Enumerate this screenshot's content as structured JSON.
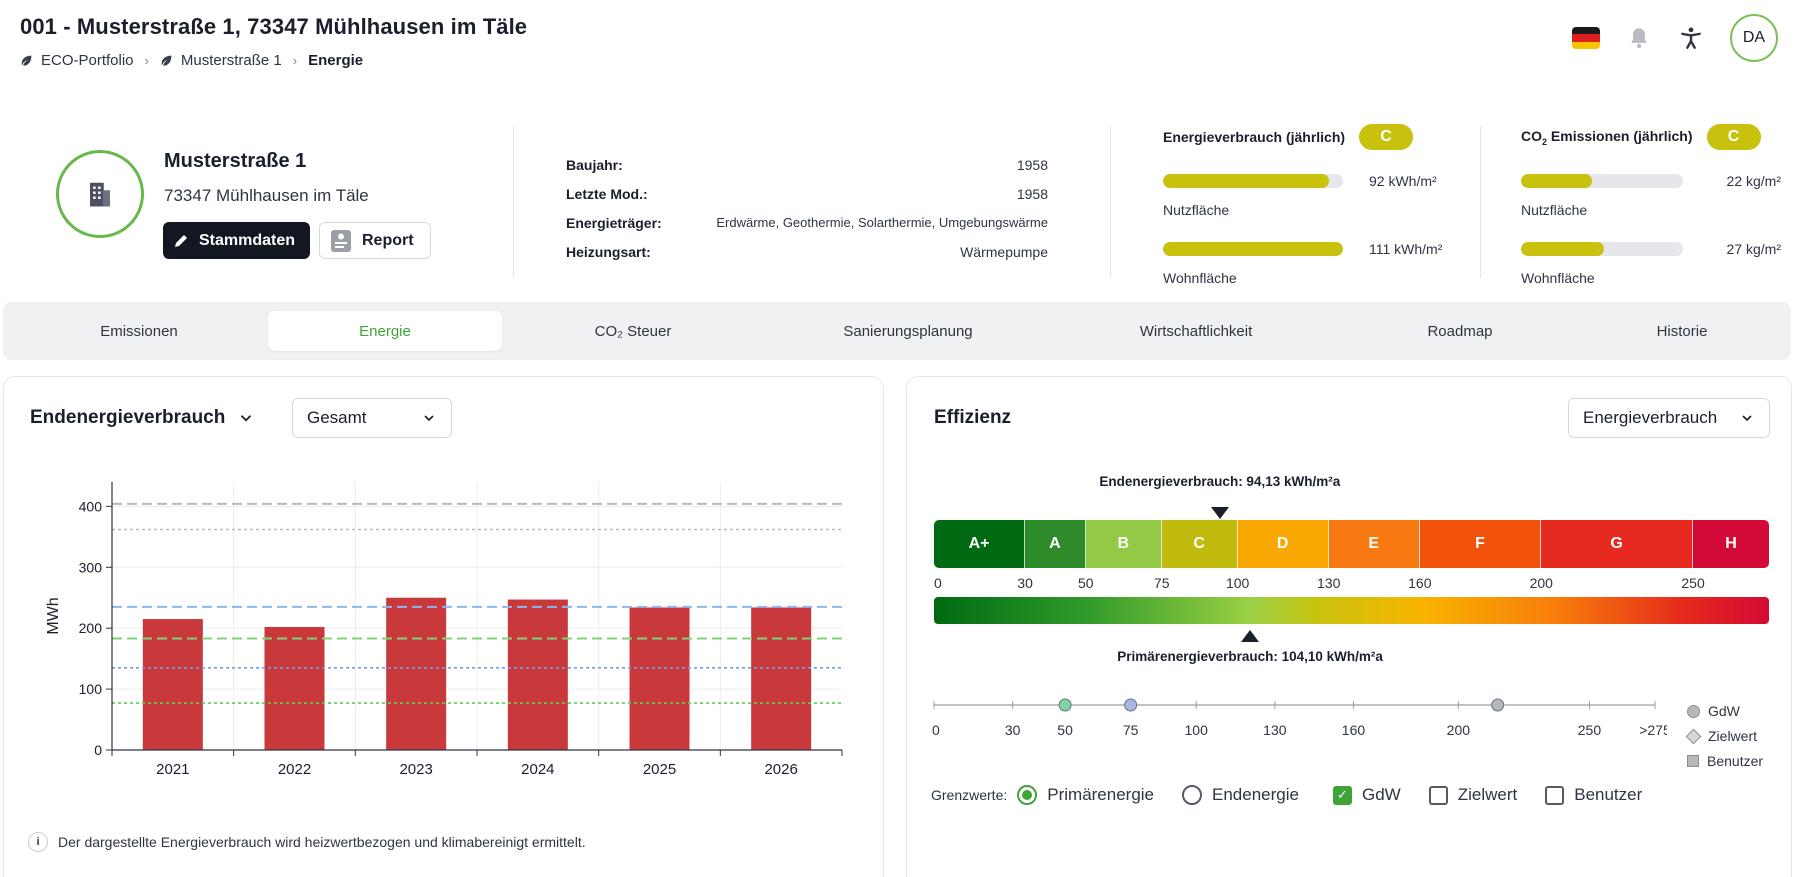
{
  "header": {
    "title": "001 - Musterstraße 1, 73347 Mühlhausen im Täle",
    "breadcrumb": [
      "ECO-Portfolio",
      "Musterstraße 1",
      "Energie"
    ],
    "avatar": "DA",
    "icons": [
      "germany-flag-icon",
      "bell-icon",
      "accessibility-icon"
    ]
  },
  "property": {
    "name": "Musterstraße 1",
    "city": "73347 Mühlhausen im Täle",
    "btn_stammdaten": "Stammdaten",
    "btn_report": "Report"
  },
  "specs": [
    {
      "label": "Baujahr:",
      "value": "1958"
    },
    {
      "label": "Letzte Mod.:",
      "value": "1958"
    },
    {
      "label": "Energieträger:",
      "value": "Erdwärme, Geothermie, Solarthermie, Umgebungswärme"
    },
    {
      "label": "Heizungsart:",
      "value": "Wärmepumpe"
    }
  ],
  "energy_metric": {
    "title": "Energieverbrauch (jährlich)",
    "badge": "C",
    "rows": [
      {
        "value": "92 kWh/m²",
        "label": "Nutzfläche",
        "fraction": 0.92
      },
      {
        "value": "111 kWh/m²",
        "label": "Wohnfläche",
        "fraction": 1.0
      }
    ]
  },
  "co2_metric": {
    "title_pre": "CO",
    "title_sub": "2",
    "title_post": " Emissionen (jährlich)",
    "badge": "C",
    "rows": [
      {
        "value": "22 kg/m²",
        "label": "Nutzfläche",
        "fraction": 0.44
      },
      {
        "value": "27 kg/m²",
        "label": "Wohnfläche",
        "fraction": 0.51
      }
    ]
  },
  "tabs": [
    {
      "label": "Emissionen",
      "active": false
    },
    {
      "label": "Energie",
      "active": true
    },
    {
      "label": "CO₂ Steuer",
      "active": false
    },
    {
      "label": "Sanierungsplanung",
      "active": false
    },
    {
      "label": "Wirtschaftlichkeit",
      "active": false
    },
    {
      "label": "Roadmap",
      "active": false
    },
    {
      "label": "Historie",
      "active": false
    }
  ],
  "left_card": {
    "title": "Endenergieverbrauch",
    "select": "Gesamt",
    "note": "Der dargestellte Energieverbrauch wird heizwertbezogen und klimabereinigt ermittelt."
  },
  "chart_data": {
    "type": "bar",
    "categories": [
      "2021",
      "2022",
      "2023",
      "2024",
      "2025",
      "2026"
    ],
    "values": [
      215,
      202,
      250,
      247,
      234,
      234
    ],
    "ylabel": "MWh",
    "ylim": [
      0,
      440
    ],
    "yticks": [
      0,
      100,
      200,
      300,
      400
    ],
    "bar_color": "#c9383a",
    "reference_lines": [
      {
        "value": 404,
        "style": "dashed",
        "color": "#b7b9bd"
      },
      {
        "value": 362,
        "style": "dotted",
        "color": "#b7b9bd"
      },
      {
        "value": 235,
        "style": "dashed",
        "color": "#8fb7ec"
      },
      {
        "value": 183,
        "style": "dashed",
        "color": "#7fd37a"
      },
      {
        "value": 135,
        "style": "dotted",
        "color": "#6f9ef0"
      },
      {
        "value": 77,
        "style": "dotted",
        "color": "#5fce5a"
      }
    ],
    "grid": true
  },
  "right_card": {
    "title": "Effizienz",
    "select": "Energieverbrauch",
    "end_label": "Endenergieverbrauch: 94,13 kWh/m²a",
    "end_value": 94.13,
    "prim_label": "Primärenergieverbrauch: 104,10 kWh/m²a",
    "prim_value": 104.1,
    "classes": [
      {
        "label": "A+",
        "from": 0,
        "to": 30,
        "color": "#006a12"
      },
      {
        "label": "A",
        "from": 30,
        "to": 50,
        "color": "#2e8b2a"
      },
      {
        "label": "B",
        "from": 50,
        "to": 75,
        "color": "#93c945"
      },
      {
        "label": "C",
        "from": 75,
        "to": 100,
        "color": "#c2bb0f"
      },
      {
        "label": "D",
        "from": 100,
        "to": 130,
        "color": "#f8a800"
      },
      {
        "label": "E",
        "from": 130,
        "to": 160,
        "color": "#f87912"
      },
      {
        "label": "F",
        "from": 160,
        "to": 200,
        "color": "#f3520d"
      },
      {
        "label": "G",
        "from": 200,
        "to": 250,
        "color": "#e62a1f"
      },
      {
        "label": "H",
        "from": 250,
        "to": 275,
        "color": "#d30a37"
      }
    ],
    "scale_ticks": [
      "0",
      "30",
      "50",
      "75",
      "100",
      "130",
      "160",
      "200",
      "250"
    ],
    "slider_ticks": [
      "0",
      "30",
      "50",
      "75",
      "100",
      "130",
      "160",
      "200",
      "250",
      ">275"
    ],
    "markers": [
      {
        "value": 50,
        "color": "#7fd3a5"
      },
      {
        "value": 75,
        "color": "#a9b6e6"
      },
      {
        "value": 215,
        "color": "#b4b7bc"
      }
    ],
    "legend": [
      "GdW",
      "Zielwert",
      "Benutzer"
    ],
    "limits_label": "Grenzwerte:",
    "radios": [
      {
        "label": "Primärenergie",
        "checked": true
      },
      {
        "label": "Endenergie",
        "checked": false
      }
    ],
    "checks": [
      {
        "label": "GdW",
        "checked": true
      },
      {
        "label": "Zielwert",
        "checked": false
      },
      {
        "label": "Benutzer",
        "checked": false
      }
    ]
  }
}
